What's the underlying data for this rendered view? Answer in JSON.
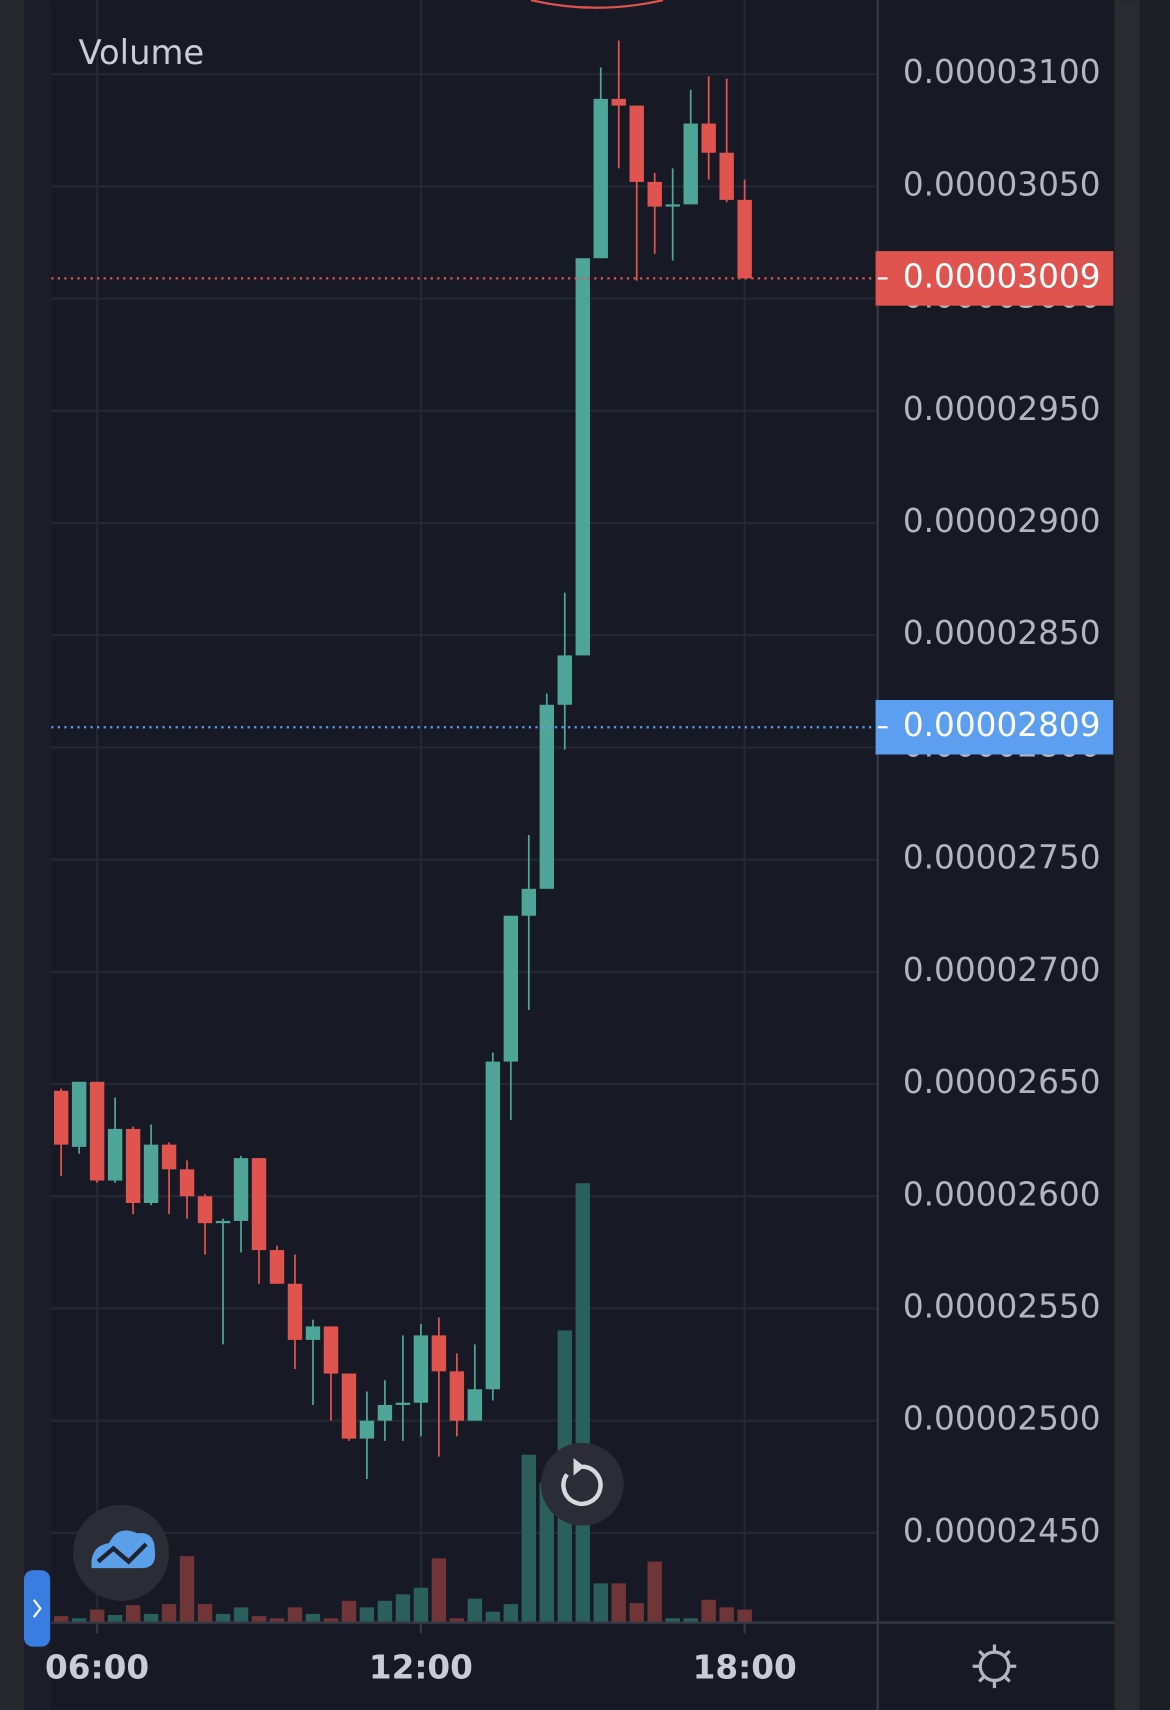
{
  "chart_data": {
    "type": "candlestick",
    "volume_label": "Volume",
    "x": [
      320,
      340,
      360,
      380,
      400,
      420,
      440,
      460,
      480,
      500,
      520,
      540,
      560,
      580,
      600,
      620,
      640,
      660,
      680,
      700,
      720,
      740,
      760,
      780,
      800,
      820,
      840,
      860,
      880,
      900,
      920,
      940,
      960,
      980,
      1000,
      1020,
      1040,
      1060,
      1080
    ],
    "open": [
      2.647e-05,
      2.622e-05,
      2.651e-05,
      2.607e-05,
      2.63e-05,
      2.597e-05,
      2.623e-05,
      2.612e-05,
      2.6e-05,
      2.588e-05,
      2.589e-05,
      2.617e-05,
      2.576e-05,
      2.561e-05,
      2.536e-05,
      2.542e-05,
      2.521e-05,
      2.492e-05,
      2.5e-05,
      2.507e-05,
      2.508e-05,
      2.538e-05,
      2.522e-05,
      2.5e-05,
      2.514e-05,
      2.66e-05,
      2.725e-05,
      2.737e-05,
      2.819e-05,
      2.841e-05,
      3.018e-05,
      3.089e-05,
      3.086e-05,
      3.052e-05,
      3.041e-05,
      3.042e-05,
      3.078e-05,
      3.065e-05,
      3.044e-05
    ],
    "high": [
      2.648e-05,
      2.651e-05,
      2.651e-05,
      2.644e-05,
      2.631e-05,
      2.632e-05,
      2.624e-05,
      2.616e-05,
      2.601e-05,
      2.59e-05,
      2.618e-05,
      2.617e-05,
      2.578e-05,
      2.574e-05,
      2.545e-05,
      2.542e-05,
      2.521e-05,
      2.513e-05,
      2.518e-05,
      2.538e-05,
      2.543e-05,
      2.546e-05,
      2.53e-05,
      2.534e-05,
      2.664e-05,
      2.725e-05,
      2.761e-05,
      2.824e-05,
      2.869e-05,
      3.018e-05,
      3.103e-05,
      3.115e-05,
      3.086e-05,
      3.056e-05,
      3.058e-05,
      3.093e-05,
      3.099e-05,
      3.098e-05,
      3.053e-05
    ],
    "low": [
      2.609e-05,
      2.619e-05,
      2.606e-05,
      2.606e-05,
      2.592e-05,
      2.596e-05,
      2.592e-05,
      2.59e-05,
      2.574e-05,
      2.534e-05,
      2.575e-05,
      2.561e-05,
      2.561e-05,
      2.523e-05,
      2.507e-05,
      2.5e-05,
      2.491e-05,
      2.474e-05,
      2.491e-05,
      2.491e-05,
      2.493e-05,
      2.484e-05,
      2.493e-05,
      2.5e-05,
      2.509e-05,
      2.634e-05,
      2.683e-05,
      2.737e-05,
      2.799e-05,
      2.841e-05,
      3.018e-05,
      3.058e-05,
      3.008e-05,
      3.02e-05,
      3.017e-05,
      3.042e-05,
      3.053e-05,
      3.043e-05,
      3.009e-05
    ],
    "close": [
      2.623e-05,
      2.651e-05,
      2.607e-05,
      2.63e-05,
      2.597e-05,
      2.623e-05,
      2.612e-05,
      2.6e-05,
      2.588e-05,
      2.589e-05,
      2.617e-05,
      2.576e-05,
      2.561e-05,
      2.536e-05,
      2.542e-05,
      2.521e-05,
      2.492e-05,
      2.5e-05,
      2.507e-05,
      2.508e-05,
      2.538e-05,
      2.522e-05,
      2.5e-05,
      2.514e-05,
      2.66e-05,
      2.725e-05,
      2.737e-05,
      2.819e-05,
      2.841e-05,
      3.018e-05,
      3.089e-05,
      3.086e-05,
      3.052e-05,
      3.041e-05,
      3.042e-05,
      3.078e-05,
      3.065e-05,
      3.044e-05,
      3.009e-05
    ],
    "volume": [
      6,
      4,
      12,
      7,
      16,
      8,
      17,
      61,
      17,
      8,
      14,
      6,
      4,
      14,
      8,
      4,
      20,
      14,
      20,
      26,
      32,
      59,
      4,
      22,
      10,
      17,
      154,
      128,
      268,
      403,
      36,
      36,
      18,
      56,
      4,
      4,
      21,
      14,
      12
    ],
    "up_color": "#4fa597",
    "down_color": "#e0544f",
    "volume_up_color": "#2b5f5c",
    "volume_down_color": "#6f3537",
    "xlim": [
      309,
      1228
    ],
    "xticks": [
      {
        "value": 360,
        "label": "06:00"
      },
      {
        "value": 720,
        "label": "12:00"
      },
      {
        "value": 1080,
        "label": "18:00"
      }
    ],
    "ylim": [
      2.41e-05,
      3.133e-05
    ],
    "yticks": [
      {
        "value": 3.1e-05,
        "label": "0.00003100"
      },
      {
        "value": 3.05e-05,
        "label": "0.00003050"
      },
      {
        "value": 3e-05,
        "label": "0.00003000"
      },
      {
        "value": 2.95e-05,
        "label": "0.00002950"
      },
      {
        "value": 2.9e-05,
        "label": "0.00002900"
      },
      {
        "value": 2.85e-05,
        "label": "0.00002850"
      },
      {
        "value": 2.8e-05,
        "label": "0.00002800"
      },
      {
        "value": 2.75e-05,
        "label": "0.00002750"
      },
      {
        "value": 2.7e-05,
        "label": "0.00002700"
      },
      {
        "value": 2.65e-05,
        "label": "0.00002650"
      },
      {
        "value": 2.6e-05,
        "label": "0.00002600"
      },
      {
        "value": 2.55e-05,
        "label": "0.00002550"
      },
      {
        "value": 2.5e-05,
        "label": "0.00002500"
      },
      {
        "value": 2.45e-05,
        "label": "0.00002450"
      }
    ],
    "price_lines": [
      {
        "value": 3.009e-05,
        "label": "0.00003009",
        "color": "#e0544f"
      },
      {
        "value": 2.809e-05,
        "label": "0.00002809",
        "color": "#5c9ef0"
      }
    ],
    "grid": true
  }
}
